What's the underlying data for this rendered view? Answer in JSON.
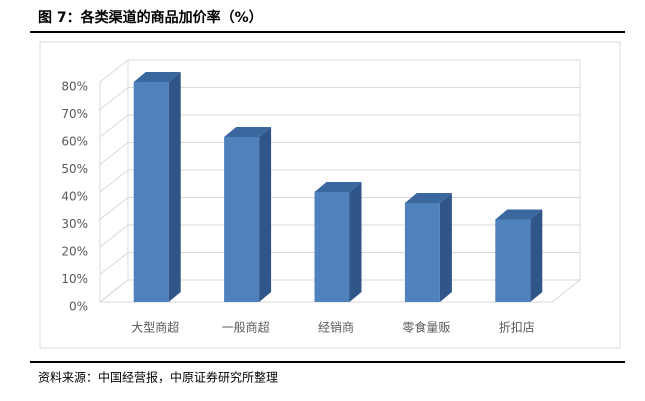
{
  "chart_data": {
    "type": "bar3d",
    "title": "图 7：各类渠道的商品加价率（%）",
    "categories": [
      "大型商超",
      "一般商超",
      "经销商",
      "零食量贩",
      "折扣店"
    ],
    "values": [
      80,
      60,
      40,
      36,
      30
    ],
    "color": "#4f81bd",
    "ylim": [
      0,
      80
    ],
    "yticks": [
      {
        "value": 0,
        "label": "0%"
      },
      {
        "value": 10,
        "label": "10%"
      },
      {
        "value": 20,
        "label": "20%"
      },
      {
        "value": 30,
        "label": "30%"
      },
      {
        "value": 40,
        "label": "40%"
      },
      {
        "value": 50,
        "label": "50%"
      },
      {
        "value": 60,
        "label": "60%"
      },
      {
        "value": 70,
        "label": "70%"
      },
      {
        "value": 80,
        "label": "80%"
      }
    ],
    "grid": true,
    "source": "资料来源：中国经营报，中原证券研究所整理"
  }
}
